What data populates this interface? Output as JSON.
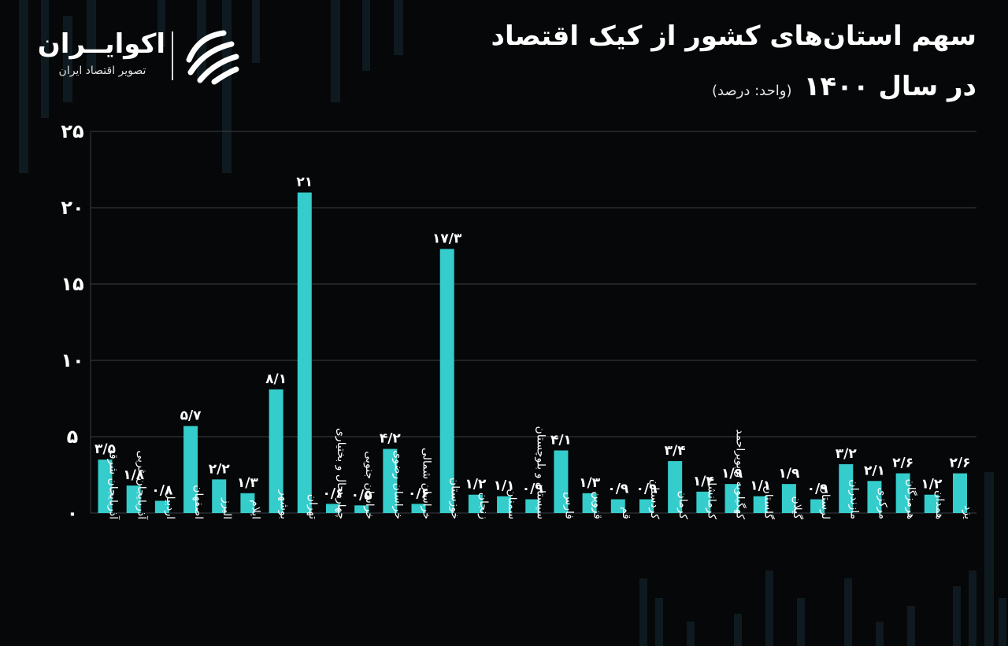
{
  "header": {
    "title_line1": "سهم استان‌های کشور از کیک اقتصاد",
    "title_line2": "در سال ۱۴۰۰",
    "unit": "(واحد: درصد)"
  },
  "brand": {
    "name": "اکوایــران",
    "tagline": "تصویر اقتصاد ایران",
    "logo_icon": "ecoiran-logo-icon"
  },
  "colors": {
    "background": "#050708",
    "bar": "#35cccc",
    "grid": "#3a3f42",
    "text": "#ffffff"
  },
  "chart_data": {
    "type": "bar",
    "title": "سهم استان‌های کشور از کیک اقتصاد در سال ۱۴۰۰",
    "unit": "(واحد: درصد)",
    "ylim": [
      0,
      25
    ],
    "yticks": [
      0,
      5,
      10,
      15,
      20,
      25
    ],
    "ytick_labels": [
      "۰",
      "۵",
      "۱۰",
      "۱۵",
      "۲۰",
      "۲۵"
    ],
    "grid": true,
    "categories": [
      "آذربایجان شرقی",
      "آذربایجان غربی",
      "اردبیل",
      "اصفهان",
      "البرز",
      "ایلام",
      "بوشهر",
      "تهران",
      "چهارمحال و بختیاری",
      "خراسان جنوبی",
      "خراسان رضوی",
      "خراسان شمالی",
      "خوزستان",
      "زنجان",
      "سمنان",
      "سیستان و بلوچستان",
      "فارس",
      "قزوین",
      "قم",
      "کردستان",
      "کرمان",
      "کرمانشاه",
      "کهگیلویه و بویراحمد",
      "گلستان",
      "گیلان",
      "لرستان",
      "مازندران",
      "مرکزی",
      "هرمزگان",
      "همدان",
      "یزد"
    ],
    "values": [
      3.5,
      1.8,
      0.8,
      5.7,
      2.2,
      1.3,
      8.1,
      21,
      0.6,
      0.5,
      4.2,
      0.6,
      17.3,
      1.2,
      1.1,
      0.9,
      4.1,
      1.3,
      0.9,
      0.9,
      3.4,
      1.4,
      1.9,
      1.1,
      1.9,
      0.9,
      3.2,
      2.1,
      2.6,
      1.2,
      2.6
    ],
    "value_labels": [
      "۳/۵",
      "۱/۸",
      "۰/۸",
      "۵/۷",
      "۲/۲",
      "۱/۳",
      "۸/۱",
      "۲۱",
      "۰/۶",
      "۰/۵",
      "۴/۲",
      "۰/۶",
      "۱۷/۳",
      "۱/۲",
      "۱/۱",
      "۰/۹",
      "۴/۱",
      "۱/۳",
      "۰/۹",
      "۰/۹",
      "۳/۴",
      "۱/۴",
      "۱/۹",
      "۱/۱",
      "۱/۹",
      "۰/۹",
      "۳/۲",
      "۲/۱",
      "۲/۶",
      "۱/۲",
      "۲/۶"
    ]
  }
}
